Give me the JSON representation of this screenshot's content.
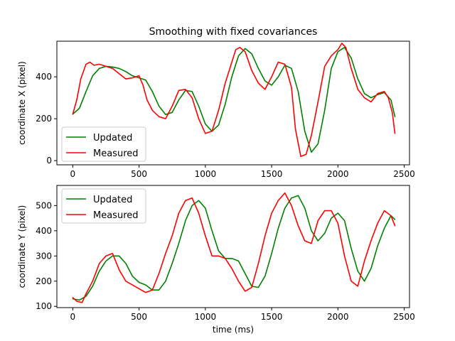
{
  "title": "Smoothing with fixed covariances",
  "chart_data": [
    {
      "type": "line",
      "title": "Smoothing with fixed covariances",
      "xlabel": "",
      "ylabel": "coordinate X (pixel)",
      "xlim": [
        -120,
        2540
      ],
      "ylim": [
        -20,
        570
      ],
      "xticks": [
        0,
        500,
        1000,
        1500,
        2000,
        2500
      ],
      "yticks": [
        0,
        200,
        400
      ],
      "legend_position": "lower-left",
      "series": [
        {
          "name": "Updated",
          "color": "#008000",
          "x": [
            0,
            50,
            100,
            150,
            200,
            250,
            300,
            350,
            400,
            450,
            500,
            550,
            600,
            650,
            700,
            750,
            800,
            850,
            900,
            950,
            1000,
            1050,
            1100,
            1150,
            1200,
            1250,
            1300,
            1350,
            1400,
            1450,
            1500,
            1550,
            1600,
            1650,
            1700,
            1750,
            1800,
            1850,
            1900,
            1950,
            2000,
            2050,
            2100,
            2150,
            2200,
            2250,
            2300,
            2350,
            2400,
            2430
          ],
          "values": [
            222,
            250,
            330,
            405,
            440,
            450,
            447,
            440,
            425,
            405,
            395,
            385,
            330,
            260,
            220,
            230,
            290,
            335,
            330,
            260,
            175,
            140,
            170,
            270,
            400,
            500,
            535,
            510,
            440,
            380,
            360,
            400,
            455,
            440,
            330,
            140,
            40,
            80,
            240,
            440,
            520,
            540,
            490,
            390,
            320,
            300,
            315,
            325,
            290,
            210
          ]
        },
        {
          "name": "Measured",
          "color": "#ff0000",
          "x": [
            0,
            30,
            60,
            100,
            130,
            160,
            200,
            250,
            300,
            350,
            400,
            450,
            500,
            530,
            560,
            600,
            650,
            700,
            750,
            800,
            850,
            900,
            950,
            1000,
            1050,
            1100,
            1150,
            1200,
            1230,
            1260,
            1300,
            1350,
            1400,
            1450,
            1500,
            1550,
            1600,
            1650,
            1680,
            1720,
            1760,
            1800,
            1850,
            1900,
            1950,
            2000,
            2030,
            2060,
            2100,
            2150,
            2200,
            2250,
            2300,
            2350,
            2380,
            2410,
            2430
          ],
          "values": [
            222,
            290,
            390,
            460,
            470,
            455,
            460,
            450,
            440,
            415,
            390,
            395,
            405,
            360,
            290,
            240,
            210,
            200,
            260,
            335,
            340,
            300,
            200,
            130,
            140,
            240,
            370,
            470,
            530,
            540,
            520,
            430,
            370,
            340,
            400,
            470,
            460,
            350,
            150,
            20,
            30,
            120,
            280,
            450,
            500,
            530,
            560,
            540,
            440,
            340,
            300,
            280,
            320,
            330,
            300,
            230,
            130
          ]
        }
      ]
    },
    {
      "type": "line",
      "title": "",
      "xlabel": "time (ms)",
      "ylabel": "coordinate Y (pixel)",
      "xlim": [
        -120,
        2540
      ],
      "ylim": [
        95,
        580
      ],
      "xticks": [
        0,
        500,
        1000,
        1500,
        2000,
        2500
      ],
      "yticks": [
        100,
        200,
        300,
        400,
        500
      ],
      "legend_position": "upper-left",
      "series": [
        {
          "name": "Updated",
          "color": "#008000",
          "x": [
            0,
            50,
            100,
            150,
            200,
            250,
            300,
            350,
            400,
            450,
            500,
            550,
            600,
            650,
            700,
            750,
            800,
            850,
            900,
            950,
            1000,
            1050,
            1100,
            1150,
            1200,
            1250,
            1300,
            1350,
            1400,
            1450,
            1500,
            1550,
            1600,
            1650,
            1700,
            1750,
            1800,
            1850,
            1900,
            1950,
            2000,
            2050,
            2100,
            2150,
            2200,
            2250,
            2300,
            2350,
            2400,
            2430
          ],
          "values": [
            130,
            125,
            140,
            180,
            240,
            280,
            300,
            300,
            270,
            220,
            195,
            185,
            165,
            165,
            200,
            270,
            350,
            440,
            500,
            520,
            490,
            400,
            320,
            290,
            290,
            280,
            230,
            180,
            175,
            220,
            310,
            410,
            490,
            530,
            540,
            490,
            400,
            360,
            390,
            450,
            470,
            440,
            330,
            240,
            200,
            250,
            340,
            410,
            460,
            445
          ]
        },
        {
          "name": "Measured",
          "color": "#ff0000",
          "x": [
            0,
            30,
            70,
            100,
            150,
            200,
            250,
            300,
            350,
            400,
            450,
            500,
            550,
            600,
            650,
            700,
            750,
            800,
            850,
            900,
            950,
            1000,
            1050,
            1100,
            1150,
            1200,
            1250,
            1300,
            1350,
            1400,
            1450,
            1500,
            1550,
            1600,
            1650,
            1700,
            1750,
            1800,
            1850,
            1900,
            1950,
            2000,
            2050,
            2100,
            2150,
            2200,
            2250,
            2300,
            2350,
            2400,
            2430
          ],
          "values": [
            135,
            120,
            115,
            150,
            200,
            270,
            300,
            310,
            245,
            200,
            185,
            170,
            155,
            165,
            230,
            310,
            380,
            470,
            520,
            530,
            470,
            380,
            300,
            300,
            290,
            250,
            200,
            160,
            175,
            270,
            380,
            470,
            520,
            550,
            500,
            420,
            360,
            350,
            440,
            480,
            480,
            430,
            300,
            200,
            180,
            280,
            360,
            430,
            480,
            460,
            420
          ]
        }
      ]
    }
  ]
}
